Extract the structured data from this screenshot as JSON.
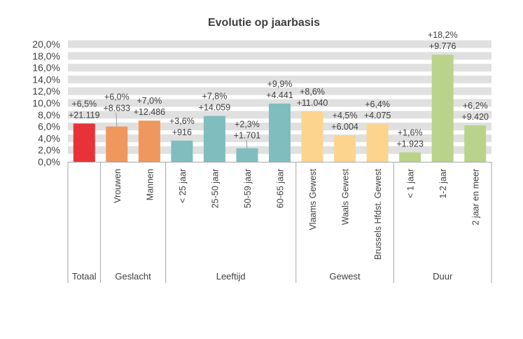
{
  "chart_data": {
    "type": "bar",
    "title": "Evolutie op jaarbasis",
    "xlabel": "",
    "ylabel": "",
    "ylim": [
      0,
      20
    ],
    "yticks": [
      "0,0%",
      "2,0%",
      "4,0%",
      "6,0%",
      "8,0%",
      "10,0%",
      "12,0%",
      "14,0%",
      "16,0%",
      "18,0%",
      "20,0%"
    ],
    "grid": true,
    "categories": [
      "",
      "Vrouwen",
      "Mannen",
      "< 25 jaar",
      "25-50 jaar",
      "50-59 jaar",
      "60-65 jaar",
      "Vlaams Gewest",
      "Waals Gewest",
      "Brussels Hfdst. Gewest",
      "< 1 jaar",
      "1-2 jaar",
      "2 jaar en meer"
    ],
    "values": [
      6.5,
      6.0,
      7.0,
      3.6,
      7.8,
      2.3,
      9.9,
      8.6,
      4.5,
      6.4,
      1.6,
      18.2,
      6.2
    ],
    "pct_labels": [
      "+6,5%",
      "+6,0%",
      "+7,0%",
      "+3,6%",
      "+7,8%",
      "+2,3%",
      "+9,9%",
      "+8,6%",
      "+4,5%",
      "+6,4%",
      "+1,6%",
      "+18,2%",
      "+6,2%"
    ],
    "count_labels": [
      "+21.119",
      "+8.633",
      "+12.486",
      "+916",
      "+14.059",
      "+1.701",
      "+4.441",
      "+11.040",
      "+6.004",
      "+4.075",
      "+1.923",
      "+9.776",
      "+9.420"
    ],
    "groups": [
      {
        "name": "Totaal",
        "size": 1,
        "color": "#E8323A"
      },
      {
        "name": "Geslacht",
        "size": 2,
        "color": "#F0975E"
      },
      {
        "name": "Leeftijd",
        "size": 4,
        "color": "#7FBDBE"
      },
      {
        "name": "Gewest",
        "size": 3,
        "color": "#FCD48E"
      },
      {
        "name": "Duur",
        "size": 3,
        "color": "#B9D48A"
      }
    ]
  }
}
